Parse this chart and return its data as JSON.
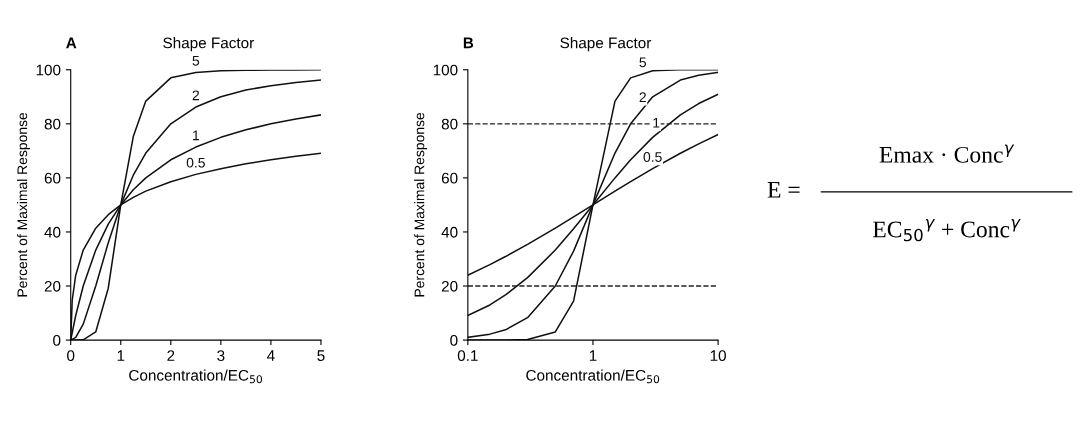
{
  "chart_data": [
    {
      "type": "line",
      "annotations": [
        "A",
        "Shape Factor"
      ],
      "xlabel": "Concentration/EC$_{50}$",
      "ylabel": "Percent of Maximal Response",
      "xlim": [
        0,
        5
      ],
      "xticks": [
        0,
        1,
        2,
        3,
        4,
        5
      ],
      "ylim": [
        0,
        100
      ],
      "yticks": [
        0,
        20,
        40,
        60,
        80,
        100
      ],
      "grid": false,
      "legend": false,
      "marker": "none",
      "line_style": "solid",
      "x": [
        0,
        0.1,
        0.25,
        0.5,
        0.75,
        1,
        1.25,
        1.5,
        2,
        2.5,
        3,
        3.5,
        4,
        4.5,
        5
      ],
      "series": [
        {
          "name": "5",
          "color": "#111111",
          "values": [
            0,
            0,
            0.1,
            3.0,
            19.2,
            50,
            75.3,
            88.4,
            97.0,
            99.0,
            99.6,
            99.8,
            99.9,
            99.9,
            100
          ]
        },
        {
          "name": "2",
          "color": "#111111",
          "values": [
            0,
            1.0,
            5.9,
            20,
            36,
            50,
            61,
            69.2,
            80,
            86.2,
            90,
            92.5,
            94.1,
            95.3,
            96.2
          ]
        },
        {
          "name": "1",
          "color": "#111111",
          "values": [
            0,
            9.1,
            20,
            33.3,
            42.9,
            50,
            55.6,
            60,
            66.7,
            71.4,
            75,
            77.8,
            80,
            81.8,
            83.3
          ]
        },
        {
          "name": "0.5",
          "color": "#111111",
          "x": [
            0,
            0.03,
            0.1,
            0.25,
            0.5,
            0.75,
            1,
            1.25,
            1.5,
            2,
            2.5,
            3,
            3.5,
            4,
            4.5,
            5
          ],
          "values": [
            0,
            14.8,
            24.0,
            33.3,
            41.4,
            46.4,
            50,
            52.8,
            55.1,
            58.6,
            61.3,
            63.4,
            65.2,
            66.7,
            68.0,
            69.1
          ]
        }
      ]
    },
    {
      "type": "line",
      "annotations": [
        "B",
        "Shape Factor",
        "E =",
        "Emax · Conc$^{γ}$",
        "EC$_{50}$$^{γ}$ + Conc$^{γ}$"
      ],
      "xlabel": "Concentration/EC$_{50}$",
      "ylabel": "Percent of Maximal Response",
      "log": "x",
      "xlim": [
        0.1,
        10
      ],
      "xticks": [
        0.1,
        1,
        10
      ],
      "ylim": [
        0,
        100
      ],
      "yticks": [
        0,
        20,
        40,
        60,
        80,
        100
      ],
      "grid": false,
      "legend": false,
      "marker": "none",
      "line_style": "solid",
      "ref_lines": [
        {
          "axis": "y",
          "value": 80,
          "color": "#222222",
          "line_style": "dashed"
        },
        {
          "axis": "y",
          "value": 20,
          "color": "#222222",
          "line_style": "dashed"
        }
      ],
      "x": [
        0.1,
        0.15,
        0.2,
        0.3,
        0.5,
        0.7,
        1,
        1.5,
        2,
        3,
        5,
        7,
        10
      ],
      "series": [
        {
          "name": "5",
          "color": "#111111",
          "values": [
            0,
            0,
            0,
            0.2,
            3.0,
            14.4,
            50,
            88.4,
            97.0,
            99.6,
            100,
            100,
            100
          ]
        },
        {
          "name": "2",
          "color": "#111111",
          "values": [
            1.0,
            2.2,
            3.8,
            8.3,
            20,
            32.9,
            50,
            69.2,
            80,
            90,
            96.2,
            98,
            99.0
          ]
        },
        {
          "name": "1",
          "color": "#111111",
          "values": [
            9.1,
            13,
            16.7,
            23.1,
            33.3,
            41.2,
            50,
            60,
            66.7,
            75,
            83.3,
            87.5,
            90.9
          ]
        },
        {
          "name": "0.5",
          "color": "#111111",
          "values": [
            24.0,
            27.9,
            30.9,
            35.4,
            41.4,
            45.6,
            50,
            55.1,
            58.6,
            63.4,
            69.1,
            72.6,
            76.0
          ]
        }
      ]
    }
  ]
}
